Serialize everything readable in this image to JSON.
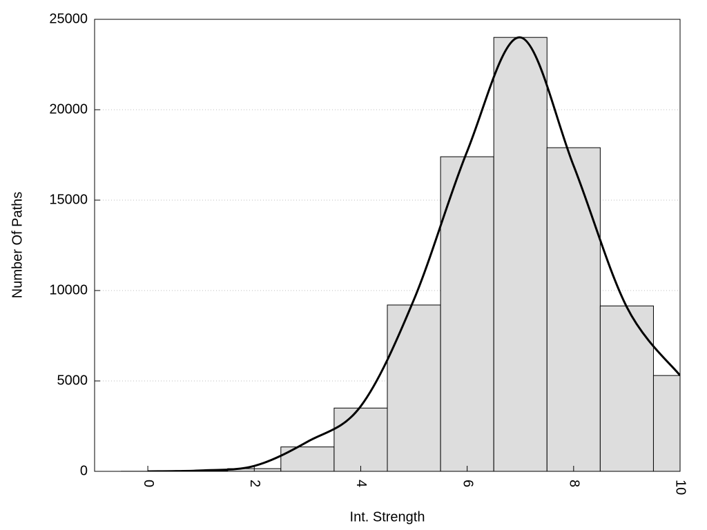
{
  "chart_data": {
    "type": "histogram",
    "xlabel": "Int. Strength",
    "ylabel": "Number Of Paths",
    "bins": [
      -0.5,
      0.5,
      1.5,
      2.5,
      3.5,
      4.5,
      5.5,
      6.5,
      7.5,
      8.5,
      9.5,
      10.5
    ],
    "counts": [
      5,
      20,
      150,
      1350,
      3500,
      9200,
      17400,
      24000,
      17900,
      9150,
      5300
    ],
    "color": "#dddddd",
    "curve": {
      "color": "#000000",
      "x": [
        0,
        1,
        2,
        3,
        4,
        5,
        6,
        7,
        8,
        9,
        10
      ],
      "values": [
        0,
        50,
        300,
        1640,
        3600,
        9500,
        17700,
        24000,
        16900,
        9080,
        5300
      ]
    },
    "xlim": [
      -1,
      10
    ],
    "xticks": [
      0,
      2,
      4,
      6,
      8,
      10
    ],
    "ylim": [
      0,
      25000
    ],
    "yticks": [
      0,
      5000,
      10000,
      15000,
      20000,
      25000
    ],
    "grid": true
  }
}
